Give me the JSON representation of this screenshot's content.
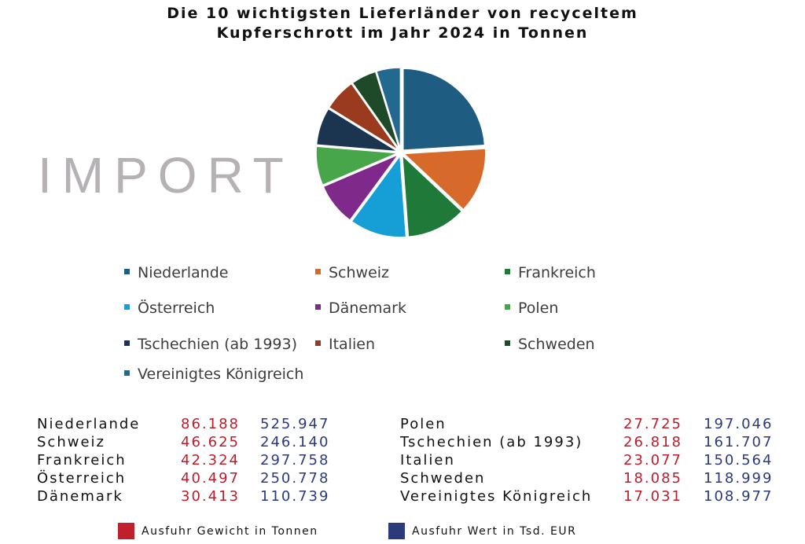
{
  "title_line1": "Die 10 wichtigsten Lieferländer von recyceltem",
  "title_line2": "Kupferschrott im Jahr 2024 in Tonnen",
  "import_label": "IMPORT",
  "chart_data": {
    "type": "pie",
    "title": "Die 10 wichtigsten Lieferländer von recyceltem Kupferschrott im Jahr 2024 in Tonnen",
    "categories": [
      "Niederlande",
      "Schweiz",
      "Frankreich",
      "Österreich",
      "Dänemark",
      "Polen",
      "Tschechien (ab 1993)",
      "Italien",
      "Schweden",
      "Vereinigtes Königreich"
    ],
    "values": [
      86188,
      46625,
      42324,
      40497,
      30413,
      27725,
      26818,
      23077,
      18085,
      17031
    ],
    "colors": [
      "#1f5c82",
      "#d7692b",
      "#1f7a3a",
      "#169fd6",
      "#7f2a8a",
      "#47a64a",
      "#1b3550",
      "#9a3a1e",
      "#1f4a2a",
      "#22688f"
    ],
    "legend_position": "bottom"
  },
  "table": {
    "left": [
      {
        "country": "Niederlande",
        "weight": "86.188",
        "value": "525.947"
      },
      {
        "country": "Schweiz",
        "weight": "46.625",
        "value": "246.140"
      },
      {
        "country": "Frankreich",
        "weight": "42.324",
        "value": "297.758"
      },
      {
        "country": "Österreich",
        "weight": "40.497",
        "value": "250.778"
      },
      {
        "country": "Dänemark",
        "weight": "30.413",
        "value": "110.739"
      }
    ],
    "right": [
      {
        "country": "Polen",
        "weight": "27.725",
        "value": "197.046"
      },
      {
        "country": "Tschechien (ab 1993)",
        "weight": "26.818",
        "value": "161.707"
      },
      {
        "country": "Italien",
        "weight": "23.077",
        "value": "150.564"
      },
      {
        "country": "Schweden",
        "weight": "18.085",
        "value": "118.999"
      },
      {
        "country": "Vereinigtes Königreich",
        "weight": "17.031",
        "value": "108.977"
      }
    ]
  },
  "footer": {
    "weight_label": "Ausfuhr Gewicht in Tonnen",
    "weight_color": "#c0202c",
    "value_label": "Ausfuhr Wert in Tsd. EUR",
    "value_color": "#2b3a7a"
  }
}
